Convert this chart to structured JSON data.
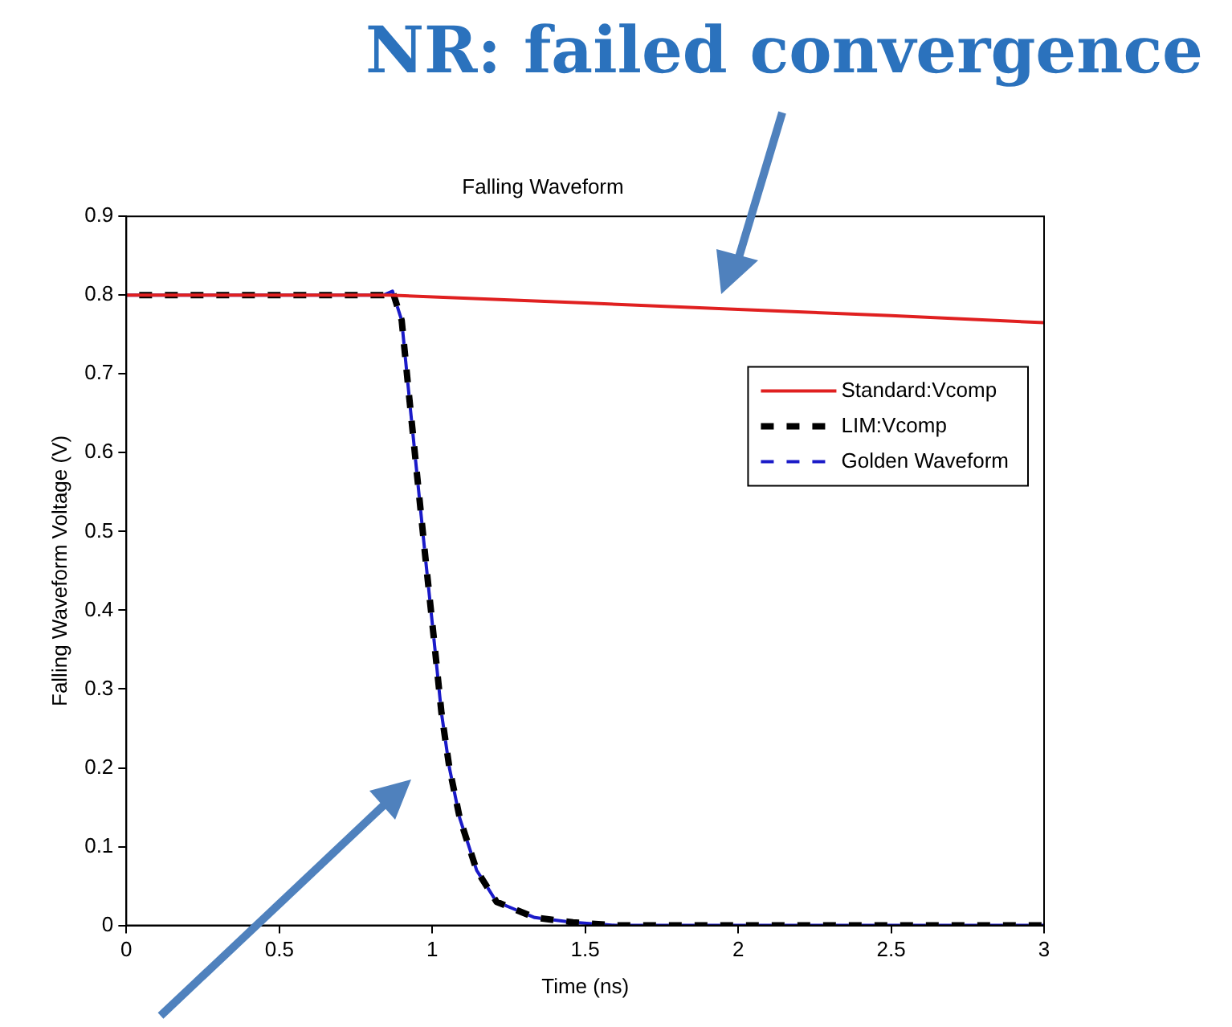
{
  "chart_data": {
    "type": "line",
    "title": "Falling Waveform",
    "xlabel": "Time (ns)",
    "ylabel": "Falling Waveform Voltage (V)",
    "annotations": [
      "NR: failed convergence"
    ],
    "xlim": [
      0,
      3
    ],
    "xticks": [
      0,
      0.5,
      1,
      1.5,
      2,
      2.5,
      3
    ],
    "ylim": [
      0,
      0.9
    ],
    "yticks": [
      0,
      0.1,
      0.2,
      0.3,
      0.4,
      0.5,
      0.6,
      0.7,
      0.8,
      0.9
    ],
    "grid": false,
    "legend": "right",
    "marker": "none",
    "series": [
      {
        "name": "Standard:Vcomp",
        "color": "#e02020",
        "line_style": "solid",
        "x": [
          0,
          0.86,
          1.5,
          2,
          2.5,
          3
        ],
        "values": [
          0.8,
          0.8,
          0.79,
          0.782,
          0.774,
          0.765
        ]
      },
      {
        "name": "LIM:Vcomp",
        "color": "#000000",
        "line_style": "dashed",
        "x": [
          0,
          0.84,
          0.87,
          0.9,
          0.925,
          0.951,
          0.977,
          1.004,
          1.03,
          1.056,
          1.09,
          1.145,
          1.21,
          1.335,
          1.46,
          1.6,
          3
        ],
        "values": [
          0.8,
          0.8,
          0.805,
          0.768,
          0.669,
          0.569,
          0.469,
          0.369,
          0.27,
          0.2,
          0.136,
          0.07,
          0.03,
          0.01,
          0.004,
          0,
          0
        ]
      },
      {
        "name": "Golden Waveform",
        "color": "#1a1ac8",
        "line_style": "dashed",
        "x": [
          0,
          0.84,
          0.87,
          0.9,
          0.925,
          0.951,
          0.977,
          1.004,
          1.03,
          1.056,
          1.09,
          1.145,
          1.21,
          1.335,
          1.46,
          1.6,
          3
        ],
        "values": [
          0.8,
          0.8,
          0.805,
          0.768,
          0.669,
          0.569,
          0.469,
          0.369,
          0.27,
          0.2,
          0.136,
          0.07,
          0.03,
          0.01,
          0.004,
          0,
          0
        ]
      }
    ]
  }
}
